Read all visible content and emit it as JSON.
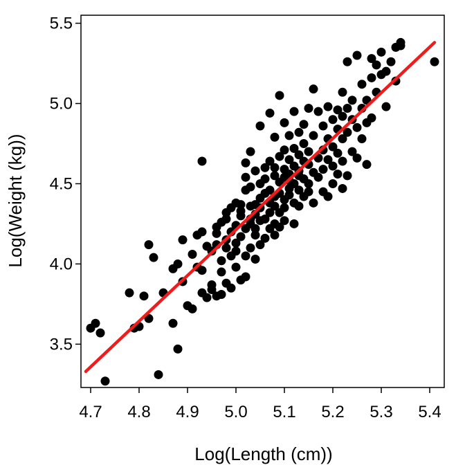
{
  "chart_data": {
    "type": "scatter",
    "title": "",
    "xlabel": "Log(Length (cm))",
    "ylabel": "Log(Weight (kg))",
    "xlim": [
      4.68,
      5.43
    ],
    "ylim": [
      3.23,
      5.55
    ],
    "x_ticks": [
      4.7,
      4.8,
      4.9,
      5.0,
      5.1,
      5.2,
      5.3,
      5.4
    ],
    "x_tick_labels": [
      "4.7",
      "4.8",
      "4.9",
      "5.0",
      "5.1",
      "5.2",
      "5.3",
      "5.4"
    ],
    "y_ticks": [
      3.5,
      4.0,
      4.5,
      5.0,
      5.5
    ],
    "y_tick_labels": [
      "3.5",
      "4.0",
      "4.5",
      "5.0",
      "5.5"
    ],
    "grid": false,
    "legend": "none",
    "colors": {
      "points": "#000000",
      "fit_line": "#ee1c1c"
    },
    "fit_line": {
      "x": [
        4.69,
        5.41
      ],
      "y": [
        3.33,
        5.38
      ]
    },
    "points": [
      [
        4.7,
        3.6
      ],
      [
        4.71,
        3.63
      ],
      [
        4.72,
        3.57
      ],
      [
        4.73,
        3.27
      ],
      [
        4.78,
        3.82
      ],
      [
        4.79,
        3.6
      ],
      [
        4.8,
        3.61
      ],
      [
        4.81,
        3.8
      ],
      [
        4.82,
        4.12
      ],
      [
        4.82,
        3.66
      ],
      [
        4.83,
        4.04
      ],
      [
        4.84,
        3.31
      ],
      [
        4.85,
        3.82
      ],
      [
        4.87,
        3.63
      ],
      [
        4.87,
        3.97
      ],
      [
        4.88,
        3.47
      ],
      [
        4.88,
        4.0
      ],
      [
        4.89,
        3.89
      ],
      [
        4.89,
        4.15
      ],
      [
        4.9,
        3.74
      ],
      [
        4.91,
        3.72
      ],
      [
        4.91,
        4.06
      ],
      [
        4.92,
        3.98
      ],
      [
        4.92,
        4.18
      ],
      [
        4.93,
        3.82
      ],
      [
        4.93,
        4.2
      ],
      [
        4.93,
        3.96
      ],
      [
        4.93,
        4.64
      ],
      [
        4.94,
        3.79
      ],
      [
        4.94,
        4.11
      ],
      [
        4.95,
        3.84
      ],
      [
        4.95,
        4.08
      ],
      [
        4.95,
        3.87
      ],
      [
        4.96,
        4.19
      ],
      [
        4.96,
        4.23
      ],
      [
        4.96,
        3.8
      ],
      [
        4.96,
        4.12
      ],
      [
        4.97,
        4.02
      ],
      [
        4.97,
        4.26
      ],
      [
        4.97,
        3.95
      ],
      [
        4.97,
        3.81
      ],
      [
        4.98,
        4.15
      ],
      [
        4.98,
        4.32
      ],
      [
        4.98,
        3.88
      ],
      [
        4.98,
        4.28
      ],
      [
        4.98,
        4.1
      ],
      [
        4.99,
        3.85
      ],
      [
        4.99,
        4.2
      ],
      [
        4.99,
        4.35
      ],
      [
        4.99,
        4.05
      ],
      [
        5.0,
        4.38
      ],
      [
        5.0,
        4.24
      ],
      [
        5.0,
        4.08
      ],
      [
        5.0,
        3.98
      ],
      [
        5.0,
        4.13
      ],
      [
        5.01,
        4.3
      ],
      [
        5.01,
        3.9
      ],
      [
        5.01,
        4.17
      ],
      [
        5.01,
        4.33
      ],
      [
        5.01,
        4.37
      ],
      [
        5.02,
        4.46
      ],
      [
        5.02,
        4.05
      ],
      [
        5.02,
        4.22
      ],
      [
        5.02,
        4.54
      ],
      [
        5.02,
        4.63
      ],
      [
        5.02,
        3.92
      ],
      [
        5.03,
        4.1
      ],
      [
        5.03,
        4.28
      ],
      [
        5.03,
        4.36
      ],
      [
        5.03,
        4.25
      ],
      [
        5.03,
        4.48
      ],
      [
        5.03,
        4.7
      ],
      [
        5.04,
        4.03
      ],
      [
        5.04,
        4.37
      ],
      [
        5.04,
        4.18
      ],
      [
        5.04,
        4.31
      ],
      [
        5.04,
        4.58
      ],
      [
        5.04,
        4.22
      ],
      [
        5.05,
        4.86
      ],
      [
        5.05,
        4.41
      ],
      [
        5.05,
        4.27
      ],
      [
        5.05,
        4.5
      ],
      [
        5.05,
        4.12
      ],
      [
        5.05,
        4.35
      ],
      [
        5.06,
        4.44
      ],
      [
        5.06,
        4.6
      ],
      [
        5.06,
        4.28
      ],
      [
        5.06,
        4.16
      ],
      [
        5.06,
        4.53
      ],
      [
        5.07,
        4.94
      ],
      [
        5.07,
        4.38
      ],
      [
        5.07,
        4.22
      ],
      [
        5.07,
        4.46
      ],
      [
        5.07,
        4.64
      ],
      [
        5.07,
        4.32
      ],
      [
        5.08,
        4.42
      ],
      [
        5.08,
        4.25
      ],
      [
        5.08,
        4.55
      ],
      [
        5.08,
        4.18
      ],
      [
        5.08,
        4.6
      ],
      [
        5.08,
        4.79
      ],
      [
        5.08,
        4.36
      ],
      [
        5.09,
        4.51
      ],
      [
        5.09,
        4.67
      ],
      [
        5.09,
        4.32
      ],
      [
        5.09,
        4.44
      ],
      [
        5.09,
        4.23
      ],
      [
        5.09,
        5.05
      ],
      [
        5.1,
        4.59
      ],
      [
        5.1,
        4.4
      ],
      [
        5.1,
        4.54
      ],
      [
        5.1,
        4.71
      ],
      [
        5.1,
        4.88
      ],
      [
        5.1,
        4.35
      ],
      [
        5.1,
        4.27
      ],
      [
        5.11,
        4.52
      ],
      [
        5.11,
        4.65
      ],
      [
        5.11,
        4.43
      ],
      [
        5.11,
        4.8
      ],
      [
        5.11,
        4.47
      ],
      [
        5.11,
        4.56
      ],
      [
        5.12,
        4.38
      ],
      [
        5.12,
        4.61
      ],
      [
        5.12,
        4.95
      ],
      [
        5.12,
        4.72
      ],
      [
        5.12,
        4.5
      ],
      [
        5.12,
        4.25
      ],
      [
        5.13,
        4.55
      ],
      [
        5.13,
        4.68
      ],
      [
        5.13,
        4.46
      ],
      [
        5.13,
        4.82
      ],
      [
        5.13,
        4.36
      ],
      [
        5.13,
        4.58
      ],
      [
        5.14,
        4.87
      ],
      [
        5.14,
        4.53
      ],
      [
        5.14,
        4.64
      ],
      [
        5.14,
        4.42
      ],
      [
        5.14,
        4.75
      ],
      [
        5.15,
        4.5
      ],
      [
        5.15,
        4.97
      ],
      [
        5.15,
        4.62
      ],
      [
        5.15,
        4.7
      ],
      [
        5.15,
        4.45
      ],
      [
        5.16,
        5.09
      ],
      [
        5.16,
        4.57
      ],
      [
        5.16,
        4.38
      ],
      [
        5.16,
        4.8
      ],
      [
        5.17,
        4.95
      ],
      [
        5.17,
        4.66
      ],
      [
        5.17,
        4.54
      ],
      [
        5.18,
        4.71
      ],
      [
        5.18,
        4.59
      ],
      [
        5.18,
        4.86
      ],
      [
        5.18,
        4.45
      ],
      [
        5.19,
        4.98
      ],
      [
        5.19,
        4.65
      ],
      [
        5.19,
        4.42
      ],
      [
        5.19,
        4.78
      ],
      [
        5.2,
        4.9
      ],
      [
        5.2,
        4.61
      ],
      [
        5.2,
        4.73
      ],
      [
        5.2,
        4.5
      ],
      [
        5.21,
        4.96
      ],
      [
        5.21,
        4.69
      ],
      [
        5.21,
        4.84
      ],
      [
        5.21,
        4.56
      ],
      [
        5.22,
        4.47
      ],
      [
        5.22,
        4.78
      ],
      [
        5.22,
        4.92
      ],
      [
        5.22,
        5.07
      ],
      [
        5.22,
        4.64
      ],
      [
        5.23,
        5.26
      ],
      [
        5.23,
        4.97
      ],
      [
        5.23,
        4.82
      ],
      [
        5.23,
        4.55
      ],
      [
        5.24,
        4.7
      ],
      [
        5.24,
        4.9
      ],
      [
        5.24,
        5.02
      ],
      [
        5.25,
        4.66
      ],
      [
        5.25,
        5.3
      ],
      [
        5.25,
        4.85
      ],
      [
        5.26,
        4.97
      ],
      [
        5.26,
        5.12
      ],
      [
        5.26,
        4.78
      ],
      [
        5.27,
        4.88
      ],
      [
        5.27,
        5.02
      ],
      [
        5.27,
        4.62
      ],
      [
        5.28,
        5.28
      ],
      [
        5.28,
        5.16
      ],
      [
        5.28,
        4.91
      ],
      [
        5.29,
        5.07
      ],
      [
        5.29,
        5.24
      ],
      [
        5.3,
        5.32
      ],
      [
        5.3,
        5.18
      ],
      [
        5.31,
        4.98
      ],
      [
        5.31,
        5.2
      ],
      [
        5.32,
        5.26
      ],
      [
        5.33,
        5.35
      ],
      [
        5.33,
        5.14
      ],
      [
        5.34,
        5.38
      ],
      [
        5.34,
        5.36
      ],
      [
        5.41,
        5.26
      ]
    ]
  }
}
